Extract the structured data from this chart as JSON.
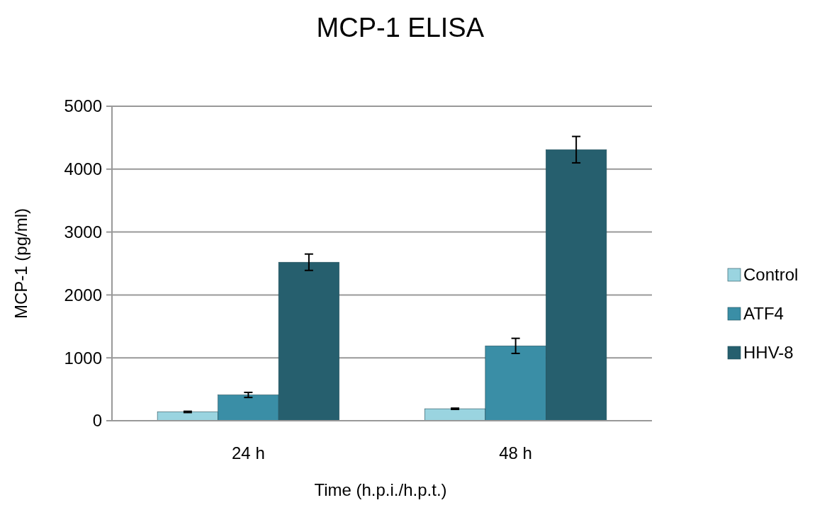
{
  "chart_data": {
    "type": "bar",
    "title": "MCP-1 ELISA",
    "xlabel": "Time (h.p.i./h.p.t.)",
    "ylabel": "MCP-1 (pg/ml)",
    "categories": [
      "24 h",
      "48 h"
    ],
    "series": [
      {
        "name": "Control",
        "color": "#9ad4e0",
        "values": [
          140,
          190
        ],
        "errors": [
          10,
          10
        ]
      },
      {
        "name": "ATF4",
        "color": "#3a8ea6",
        "values": [
          410,
          1190
        ],
        "errors": [
          40,
          120
        ]
      },
      {
        "name": "HHV-8",
        "color": "#265f6e",
        "values": [
          2520,
          4310
        ],
        "errors": [
          130,
          210
        ]
      }
    ],
    "ylim": [
      0,
      5000
    ],
    "yticks": [
      0,
      1000,
      2000,
      3000,
      4000,
      5000
    ],
    "grid": "y",
    "legend": "right"
  }
}
